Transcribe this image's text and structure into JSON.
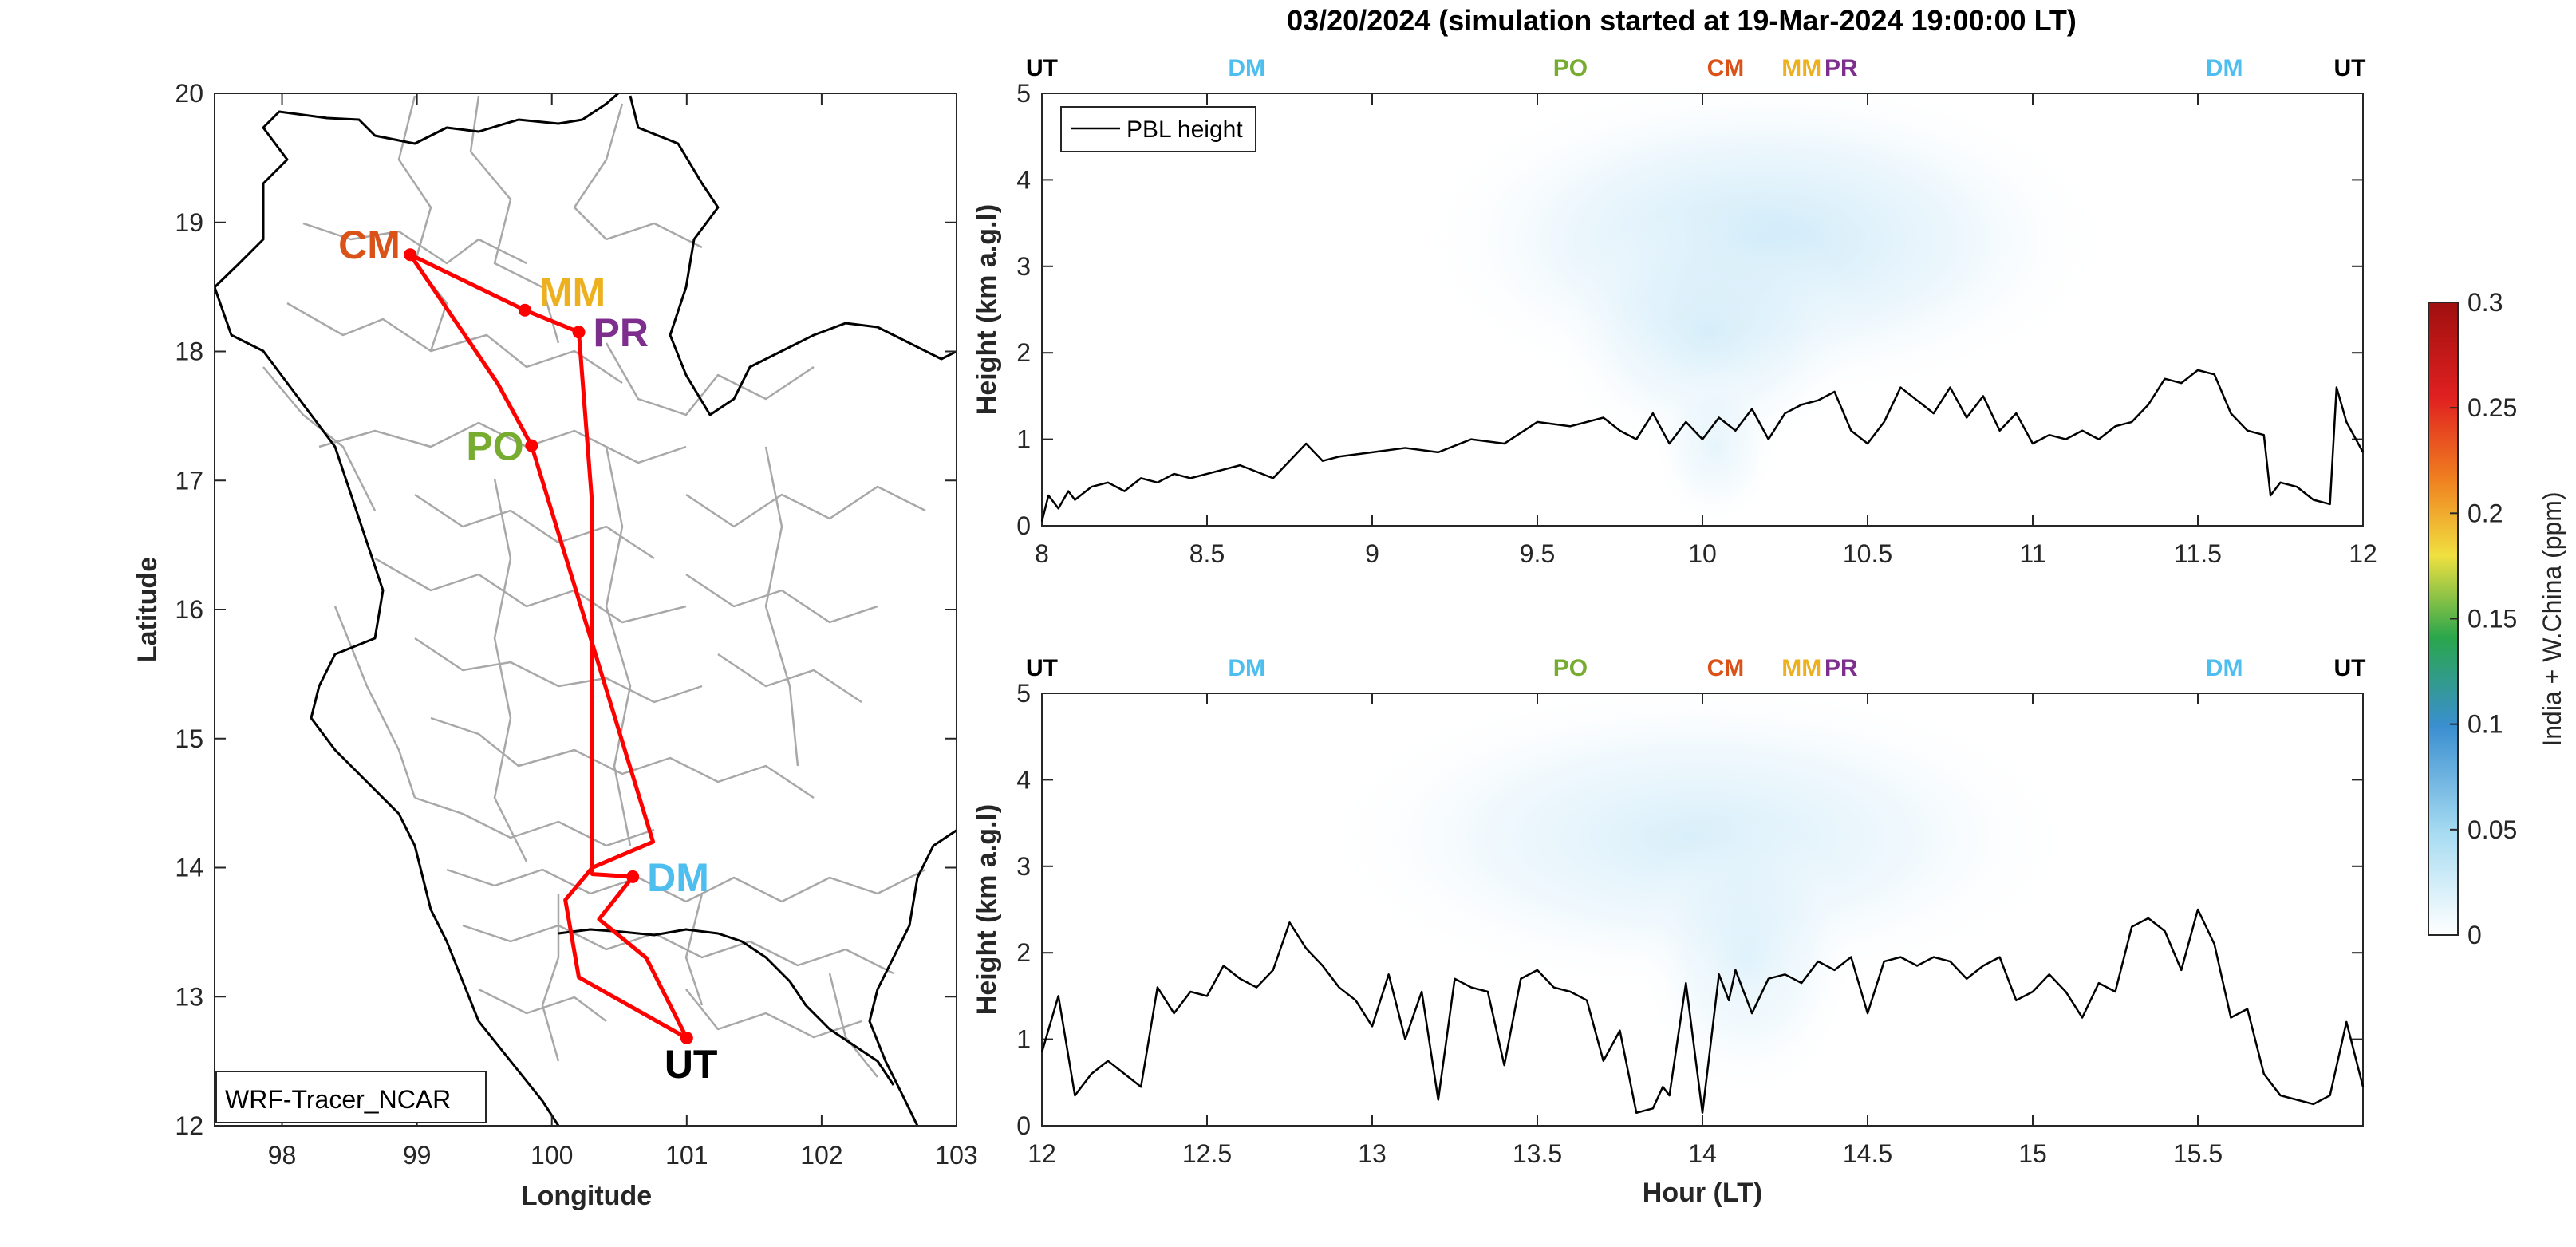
{
  "title": "03/20/2024 (simulation started at 19-Mar-2024 19:00:00 LT)",
  "colors": {
    "UT": "#000000",
    "DM": "#4DBEEE",
    "PO": "#77AC30",
    "CM": "#D95319",
    "MM": "#EDB120",
    "PR": "#7E2F8E",
    "route": "#FF0000",
    "pbl": "#000000"
  },
  "map": {
    "xlabel": "Longitude",
    "ylabel": "Latitude",
    "xlim": [
      97.5,
      103
    ],
    "ylim": [
      12,
      20
    ],
    "xticks": [
      "98",
      "99",
      "100",
      "101",
      "102",
      "103"
    ],
    "yticks": [
      "12",
      "13",
      "14",
      "15",
      "16",
      "17",
      "18",
      "19",
      "20"
    ],
    "source_label": "WRF-Tracer_NCAR",
    "stations": [
      {
        "id": "CM",
        "lon": 98.95,
        "lat": 18.75
      },
      {
        "id": "MM",
        "lon": 99.8,
        "lat": 18.32
      },
      {
        "id": "PR",
        "lon": 100.2,
        "lat": 18.15
      },
      {
        "id": "PO",
        "lon": 99.85,
        "lat": 17.27
      },
      {
        "id": "DM",
        "lon": 100.6,
        "lat": 13.93
      },
      {
        "id": "UT",
        "lon": 101.0,
        "lat": 12.68
      }
    ],
    "route": [
      [
        101.0,
        12.68
      ],
      [
        100.2,
        13.15
      ],
      [
        100.1,
        13.75
      ],
      [
        100.3,
        14.0
      ],
      [
        100.75,
        14.2
      ],
      [
        99.85,
        17.27
      ],
      [
        99.6,
        17.75
      ],
      [
        98.95,
        18.75
      ],
      [
        99.8,
        18.32
      ],
      [
        100.2,
        18.15
      ],
      [
        100.3,
        16.8
      ],
      [
        100.3,
        13.95
      ],
      [
        100.6,
        13.93
      ],
      [
        100.35,
        13.6
      ],
      [
        100.7,
        13.3
      ],
      [
        101.0,
        12.68
      ]
    ]
  },
  "chart_data": [
    {
      "type": "line",
      "xlabel": "",
      "ylabel": "Height (km a.g.l)",
      "xlim": [
        8,
        12
      ],
      "ylim": [
        0,
        5
      ],
      "xticks": [
        "8",
        "8.5",
        "9",
        "9.5",
        "10",
        "10.5",
        "11",
        "11.5",
        "12"
      ],
      "yticks": [
        "0",
        "1",
        "2",
        "3",
        "4",
        "5"
      ],
      "legend": "PBL height",
      "stations_top": [
        {
          "id": "UT",
          "x": 8.0
        },
        {
          "id": "DM",
          "x": 8.62
        },
        {
          "id": "PO",
          "x": 9.6
        },
        {
          "id": "CM",
          "x": 10.07
        },
        {
          "id": "MM",
          "x": 10.3
        },
        {
          "id": "PR",
          "x": 10.42
        },
        {
          "id": "DM",
          "x": 11.58
        },
        {
          "id": "UT",
          "x": 11.96
        }
      ],
      "series": [
        {
          "x": [
            8.0,
            8.02,
            8.05,
            8.08,
            8.1,
            8.15,
            8.2,
            8.25,
            8.3,
            8.35,
            8.4,
            8.45,
            8.5,
            8.55,
            8.6,
            8.7,
            8.8,
            8.85,
            8.9,
            9.0,
            9.1,
            9.2,
            9.3,
            9.4,
            9.5,
            9.6,
            9.7,
            9.75,
            9.8,
            9.85,
            9.9,
            9.95,
            10.0,
            10.05,
            10.1,
            10.15,
            10.2,
            10.25,
            10.3,
            10.35,
            10.4,
            10.45,
            10.5,
            10.55,
            10.6,
            10.65,
            10.7,
            10.75,
            10.8,
            10.85,
            10.9,
            10.95,
            11.0,
            11.05,
            11.1,
            11.15,
            11.2,
            11.25,
            11.3,
            11.35,
            11.4,
            11.45,
            11.5,
            11.55,
            11.6,
            11.65,
            11.7,
            11.72,
            11.75,
            11.8,
            11.85,
            11.9,
            11.92,
            11.95,
            12.0
          ],
          "y": [
            0.05,
            0.35,
            0.2,
            0.4,
            0.3,
            0.45,
            0.5,
            0.4,
            0.55,
            0.5,
            0.6,
            0.55,
            0.6,
            0.65,
            0.7,
            0.55,
            0.95,
            0.75,
            0.8,
            0.85,
            0.9,
            0.85,
            1.0,
            0.95,
            1.2,
            1.15,
            1.25,
            1.1,
            1.0,
            1.3,
            0.95,
            1.2,
            1.0,
            1.25,
            1.1,
            1.35,
            1.0,
            1.3,
            1.4,
            1.45,
            1.55,
            1.1,
            0.95,
            1.2,
            1.6,
            1.45,
            1.3,
            1.6,
            1.25,
            1.5,
            1.1,
            1.3,
            0.95,
            1.05,
            1.0,
            1.1,
            1.0,
            1.15,
            1.2,
            1.4,
            1.7,
            1.65,
            1.8,
            1.75,
            1.3,
            1.1,
            1.05,
            0.35,
            0.5,
            0.45,
            0.3,
            0.25,
            1.6,
            1.2,
            0.85
          ]
        }
      ]
    },
    {
      "type": "line",
      "xlabel": "Hour (LT)",
      "ylabel": "Height (km a.g.l)",
      "xlim": [
        12,
        16
      ],
      "ylim": [
        0,
        5
      ],
      "xticks": [
        "12",
        "12.5",
        "13",
        "13.5",
        "14",
        "14.5",
        "15",
        "15.5"
      ],
      "yticks": [
        "0",
        "1",
        "2",
        "3",
        "4",
        "5"
      ],
      "stations_top": [
        {
          "id": "UT",
          "x": 12.0
        },
        {
          "id": "DM",
          "x": 12.62
        },
        {
          "id": "PO",
          "x": 13.6
        },
        {
          "id": "CM",
          "x": 14.07
        },
        {
          "id": "MM",
          "x": 14.3
        },
        {
          "id": "PR",
          "x": 14.42
        },
        {
          "id": "DM",
          "x": 15.58
        },
        {
          "id": "UT",
          "x": 15.96
        }
      ],
      "series": [
        {
          "x": [
            12.0,
            12.05,
            12.1,
            12.15,
            12.2,
            12.25,
            12.3,
            12.35,
            12.4,
            12.45,
            12.5,
            12.55,
            12.6,
            12.65,
            12.7,
            12.75,
            12.8,
            12.85,
            12.9,
            12.95,
            13.0,
            13.05,
            13.1,
            13.15,
            13.2,
            13.25,
            13.3,
            13.35,
            13.4,
            13.45,
            13.5,
            13.55,
            13.6,
            13.65,
            13.7,
            13.75,
            13.8,
            13.85,
            13.88,
            13.9,
            13.95,
            14.0,
            14.05,
            14.08,
            14.1,
            14.15,
            14.2,
            14.25,
            14.3,
            14.35,
            14.4,
            14.45,
            14.5,
            14.55,
            14.6,
            14.65,
            14.7,
            14.75,
            14.8,
            14.85,
            14.9,
            14.95,
            15.0,
            15.05,
            15.1,
            15.15,
            15.2,
            15.25,
            15.3,
            15.35,
            15.4,
            15.45,
            15.5,
            15.55,
            15.6,
            15.65,
            15.7,
            15.75,
            15.8,
            15.85,
            15.9,
            15.95,
            16.0
          ],
          "y": [
            0.85,
            1.5,
            0.35,
            0.6,
            0.75,
            0.6,
            0.45,
            1.6,
            1.3,
            1.55,
            1.5,
            1.85,
            1.7,
            1.6,
            1.8,
            2.35,
            2.05,
            1.85,
            1.6,
            1.45,
            1.15,
            1.75,
            1.0,
            1.55,
            0.3,
            1.7,
            1.6,
            1.55,
            0.7,
            1.7,
            1.8,
            1.6,
            1.55,
            1.45,
            0.75,
            1.1,
            0.15,
            0.2,
            0.45,
            0.35,
            1.65,
            0.15,
            1.75,
            1.45,
            1.8,
            1.3,
            1.7,
            1.75,
            1.65,
            1.9,
            1.8,
            1.95,
            1.3,
            1.9,
            1.95,
            1.85,
            1.95,
            1.9,
            1.7,
            1.85,
            1.95,
            1.45,
            1.55,
            1.75,
            1.55,
            1.25,
            1.65,
            1.55,
            2.3,
            2.4,
            2.25,
            1.8,
            2.5,
            2.1,
            1.25,
            1.35,
            0.6,
            0.35,
            0.3,
            0.25,
            0.35,
            1.2,
            0.45
          ]
        }
      ]
    }
  ],
  "colorbar": {
    "label": "India + W.China (ppm)",
    "ticks": [
      "0",
      "0.05",
      "0.1",
      "0.15",
      "0.2",
      "0.25",
      "0.3"
    ],
    "colors": [
      "#FFFFFF",
      "#A8DCF2",
      "#3A8FD0",
      "#2AA64C",
      "#F0E040",
      "#F08020",
      "#E02020",
      "#A00F0F"
    ]
  }
}
